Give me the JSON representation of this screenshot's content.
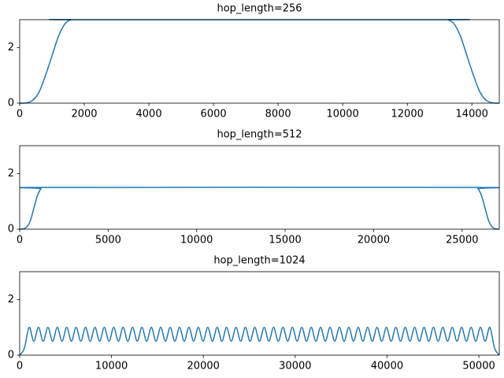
{
  "chart_data": [
    {
      "type": "line",
      "title": "hop_length=256",
      "x": [
        0,
        200,
        400,
        600,
        800,
        1000,
        1200,
        1400,
        1600,
        1800,
        13048,
        13248,
        13448,
        13648,
        13848,
        14048,
        14248,
        14448,
        14648,
        14848
      ],
      "values": [
        0,
        0.01,
        0.1,
        0.4,
        1.0,
        1.7,
        2.4,
        2.85,
        3.0,
        3.0,
        3.0,
        3.0,
        2.85,
        2.4,
        1.7,
        1.0,
        0.4,
        0.1,
        0.01,
        0
      ],
      "color": "#1f77b4",
      "xlim": [
        0,
        14848
      ],
      "ylim": [
        0,
        3
      ],
      "xticks": [
        0,
        2000,
        4000,
        6000,
        8000,
        10000,
        12000,
        14000
      ],
      "yticks": [
        0,
        2
      ]
    },
    {
      "type": "line",
      "title": "hop_length=512",
      "x": [
        0,
        200,
        400,
        600,
        800,
        1000,
        1200,
        1400,
        25700,
        25900,
        26100,
        26300,
        26500,
        26700,
        26900,
        27100
      ],
      "values": [
        0,
        0.01,
        0.08,
        0.3,
        0.75,
        1.2,
        1.45,
        1.5,
        1.5,
        1.45,
        1.2,
        0.75,
        0.3,
        0.08,
        0.01,
        0
      ],
      "color": "#1f77b4",
      "xlim": [
        0,
        27100
      ],
      "ylim": [
        0,
        3
      ],
      "xticks": [
        0,
        5000,
        10000,
        15000,
        20000,
        25000
      ],
      "yticks": [
        0,
        2
      ]
    },
    {
      "type": "line",
      "title": "hop_length=1024",
      "x": [
        0,
        512,
        1024,
        1536,
        2048,
        2560,
        3072,
        3584,
        4096,
        4608,
        5120,
        5632,
        6144,
        6656,
        7168,
        7680,
        8192,
        8704,
        9216,
        9728,
        10240,
        10752,
        11264,
        11776,
        12288,
        12800,
        13312,
        13824,
        14336,
        14848,
        15360,
        15872,
        16384,
        16896,
        17408,
        17920,
        18432,
        18944,
        19456,
        19968,
        20480,
        20992,
        21504,
        22016,
        22528,
        23040,
        23552,
        24064,
        24576,
        25088,
        25600,
        26112,
        26624,
        27136,
        27648,
        28160,
        28672,
        29184,
        29696,
        30208,
        30720,
        31232,
        31744,
        32256,
        32768,
        33280,
        33792,
        34304,
        34816,
        35328,
        35840,
        36352,
        36864,
        37376,
        37888,
        38400,
        38912,
        39424,
        39936,
        40448,
        40960,
        41472,
        41984,
        42496,
        43008,
        43520,
        44032,
        44544,
        45056,
        45568,
        46080,
        46592,
        47104,
        47616,
        48128,
        48640,
        49152,
        49664,
        50176,
        50688,
        51200,
        51712,
        52224
      ],
      "values": [
        0,
        0.25,
        1,
        0.5,
        1,
        0.5,
        1,
        0.5,
        1,
        0.5,
        1,
        0.5,
        1,
        0.5,
        1,
        0.5,
        1,
        0.5,
        1,
        0.5,
        1,
        0.5,
        1,
        0.5,
        1,
        0.5,
        1,
        0.5,
        1,
        0.5,
        1,
        0.5,
        1,
        0.5,
        1,
        0.5,
        1,
        0.5,
        1,
        0.5,
        1,
        0.5,
        1,
        0.5,
        1,
        0.5,
        1,
        0.5,
        1,
        0.5,
        1,
        0.5,
        1,
        0.5,
        1,
        0.5,
        1,
        0.5,
        1,
        0.5,
        1,
        0.5,
        1,
        0.5,
        1,
        0.5,
        1,
        0.5,
        1,
        0.5,
        1,
        0.5,
        1,
        0.5,
        1,
        0.5,
        1,
        0.5,
        1,
        0.5,
        1,
        0.5,
        1,
        0.5,
        1,
        0.5,
        1,
        0.5,
        1,
        0.5,
        1,
        0.5,
        1,
        0.5,
        1,
        0.5,
        1,
        0.5,
        1,
        0.5,
        1,
        0.25,
        0
      ],
      "color": "#1f77b4",
      "xlim": [
        0,
        52224
      ],
      "ylim": [
        0,
        3
      ],
      "xticks": [
        0,
        10000,
        20000,
        30000,
        40000,
        50000
      ],
      "yticks": [
        0,
        2
      ]
    }
  ]
}
